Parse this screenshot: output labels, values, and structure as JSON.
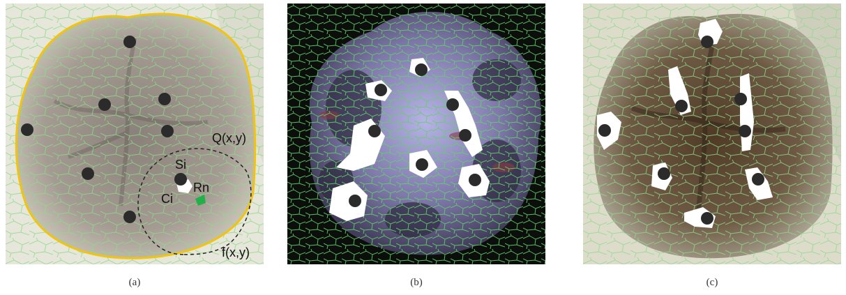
{
  "panels": [
    {
      "caption": "(a)",
      "annotations": {
        "q": "Q(x,y)",
        "f": "f(x,y)",
        "si": "Si",
        "rn": "Rn",
        "ci": "Ci"
      }
    },
    {
      "caption": "(b)"
    },
    {
      "caption": "(c)"
    }
  ],
  "colors": {
    "contour": "#f1c40f",
    "superpixel_edges": "#7ed957",
    "seed_points": "#2b2b2b",
    "region_fill": "#ffffff",
    "highlight": "#22b04a"
  }
}
